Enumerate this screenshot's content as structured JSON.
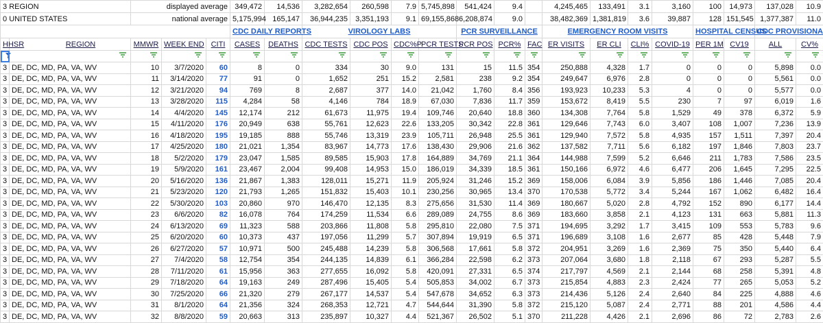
{
  "summary_rows": [
    {
      "id": "3",
      "label": "REGION",
      "note": "displayed average",
      "values": [
        "349,472",
        "14,536",
        "3,282,654",
        "260,598",
        "7.9",
        "5,745,898",
        "541,424",
        "9.4",
        "4,245,465",
        "133,491",
        "3.1",
        "3,160",
        "100",
        "14,973",
        "137,028",
        "10.9"
      ]
    },
    {
      "id": "0",
      "label": "UNITED STATES",
      "note": "national average",
      "values": [
        "5,175,994",
        "165,147",
        "36,944,235",
        "3,351,193",
        "9.1",
        "69,155,868",
        "6,208,874",
        "9.0",
        "38,482,369",
        "1,381,819",
        "3.6",
        "39,887",
        "128",
        "151,545",
        "1,377,387",
        "11.0"
      ]
    }
  ],
  "group_headers": [
    "CDC DAILY REPORTS",
    "VIROLOGY LABS",
    "PCR SURVEILLANCE",
    "EMERGENCY ROOM VISITS",
    "HOSPITAL CENSUS",
    "CDC PROVISIONAL DEATHS"
  ],
  "columns": [
    "HHSR",
    "REGION",
    "MMWR",
    "WEEK END",
    "CITI",
    "CASES",
    "DEATHS",
    "CDC TESTS",
    "CDC POS",
    "CDC%P",
    "PCR TESTS",
    "PCR POS",
    "PCR%",
    "FAC",
    "ER VISITS",
    "ER CLI",
    "CLI%",
    "COVID-19",
    "PER 1M",
    "CV19",
    "ALL",
    "CV%"
  ],
  "rows": [
    [
      "3",
      "DE, DC, MD, PA, VA, WV",
      "10",
      "3/7/2020",
      "60",
      "8",
      "0",
      "334",
      "30",
      "9.0",
      "131",
      "15",
      "11.5",
      "354",
      "250,888",
      "4,328",
      "1.7",
      "0",
      "0",
      "0",
      "5,898",
      "0.0"
    ],
    [
      "3",
      "DE, DC, MD, PA, VA, WV",
      "11",
      "3/14/2020",
      "77",
      "91",
      "0",
      "1,652",
      "251",
      "15.2",
      "2,581",
      "238",
      "9.2",
      "354",
      "249,647",
      "6,976",
      "2.8",
      "0",
      "0",
      "0",
      "5,561",
      "0.0"
    ],
    [
      "3",
      "DE, DC, MD, PA, VA, WV",
      "12",
      "3/21/2020",
      "94",
      "769",
      "8",
      "2,687",
      "377",
      "14.0",
      "21,042",
      "1,760",
      "8.4",
      "356",
      "193,923",
      "10,233",
      "5.3",
      "4",
      "0",
      "0",
      "5,577",
      "0.0"
    ],
    [
      "3",
      "DE, DC, MD, PA, VA, WV",
      "13",
      "3/28/2020",
      "115",
      "4,284",
      "58",
      "4,146",
      "784",
      "18.9",
      "67,030",
      "7,836",
      "11.7",
      "359",
      "153,672",
      "8,419",
      "5.5",
      "230",
      "7",
      "97",
      "6,019",
      "1.6"
    ],
    [
      "3",
      "DE, DC, MD, PA, VA, WV",
      "14",
      "4/4/2020",
      "145",
      "12,174",
      "212",
      "61,673",
      "11,975",
      "19.4",
      "109,746",
      "20,640",
      "18.8",
      "360",
      "134,308",
      "7,764",
      "5.8",
      "1,529",
      "49",
      "378",
      "6,372",
      "5.9"
    ],
    [
      "3",
      "DE, DC, MD, PA, VA, WV",
      "15",
      "4/11/2020",
      "176",
      "20,949",
      "638",
      "55,761",
      "12,623",
      "22.6",
      "133,205",
      "30,342",
      "22.8",
      "361",
      "129,646",
      "7,743",
      "6.0",
      "3,407",
      "108",
      "1,007",
      "7,236",
      "13.9"
    ],
    [
      "3",
      "DE, DC, MD, PA, VA, WV",
      "16",
      "4/18/2020",
      "195",
      "19,185",
      "888",
      "55,746",
      "13,319",
      "23.9",
      "105,711",
      "26,948",
      "25.5",
      "361",
      "129,940",
      "7,572",
      "5.8",
      "4,935",
      "157",
      "1,511",
      "7,397",
      "20.4"
    ],
    [
      "3",
      "DE, DC, MD, PA, VA, WV",
      "17",
      "4/25/2020",
      "180",
      "21,021",
      "1,354",
      "83,967",
      "14,773",
      "17.6",
      "138,430",
      "29,906",
      "21.6",
      "362",
      "137,582",
      "7,711",
      "5.6",
      "6,182",
      "197",
      "1,846",
      "7,803",
      "23.7"
    ],
    [
      "3",
      "DE, DC, MD, PA, VA, WV",
      "18",
      "5/2/2020",
      "179",
      "23,047",
      "1,585",
      "89,585",
      "15,903",
      "17.8",
      "164,889",
      "34,769",
      "21.1",
      "364",
      "144,988",
      "7,599",
      "5.2",
      "6,646",
      "211",
      "1,783",
      "7,586",
      "23.5"
    ],
    [
      "3",
      "DE, DC, MD, PA, VA, WV",
      "19",
      "5/9/2020",
      "161",
      "23,467",
      "2,004",
      "99,408",
      "14,953",
      "15.0",
      "186,019",
      "34,339",
      "18.5",
      "361",
      "150,166",
      "6,972",
      "4.6",
      "6,477",
      "206",
      "1,645",
      "7,295",
      "22.5"
    ],
    [
      "3",
      "DE, DC, MD, PA, VA, WV",
      "20",
      "5/16/2020",
      "136",
      "21,867",
      "1,383",
      "128,011",
      "15,271",
      "11.9",
      "205,924",
      "31,246",
      "15.2",
      "369",
      "158,006",
      "6,084",
      "3.9",
      "5,856",
      "186",
      "1,446",
      "7,085",
      "20.4"
    ],
    [
      "3",
      "DE, DC, MD, PA, VA, WV",
      "21",
      "5/23/2020",
      "120",
      "21,793",
      "1,265",
      "151,832",
      "15,403",
      "10.1",
      "230,256",
      "30,965",
      "13.4",
      "370",
      "170,538",
      "5,772",
      "3.4",
      "5,244",
      "167",
      "1,062",
      "6,482",
      "16.4"
    ],
    [
      "3",
      "DE, DC, MD, PA, VA, WV",
      "22",
      "5/30/2020",
      "103",
      "20,860",
      "970",
      "146,470",
      "12,135",
      "8.3",
      "275,656",
      "31,530",
      "11.4",
      "369",
      "180,667",
      "5,020",
      "2.8",
      "4,792",
      "152",
      "890",
      "6,177",
      "14.4"
    ],
    [
      "3",
      "DE, DC, MD, PA, VA, WV",
      "23",
      "6/6/2020",
      "82",
      "16,078",
      "764",
      "174,259",
      "11,534",
      "6.6",
      "289,089",
      "24,755",
      "8.6",
      "369",
      "183,660",
      "3,858",
      "2.1",
      "4,123",
      "131",
      "663",
      "5,881",
      "11.3"
    ],
    [
      "3",
      "DE, DC, MD, PA, VA, WV",
      "24",
      "6/13/2020",
      "69",
      "11,323",
      "588",
      "203,866",
      "11,808",
      "5.8",
      "295,810",
      "22,080",
      "7.5",
      "371",
      "194,695",
      "3,292",
      "1.7",
      "3,415",
      "109",
      "553",
      "5,783",
      "9.6"
    ],
    [
      "3",
      "DE, DC, MD, PA, VA, WV",
      "25",
      "6/20/2020",
      "60",
      "10,373",
      "437",
      "197,056",
      "11,299",
      "5.7",
      "307,894",
      "19,919",
      "6.5",
      "371",
      "196,689",
      "3,108",
      "1.6",
      "2,677",
      "85",
      "428",
      "5,448",
      "7.9"
    ],
    [
      "3",
      "DE, DC, MD, PA, VA, WV",
      "26",
      "6/27/2020",
      "57",
      "10,971",
      "500",
      "245,488",
      "14,239",
      "5.8",
      "306,568",
      "17,661",
      "5.8",
      "372",
      "204,951",
      "3,269",
      "1.6",
      "2,369",
      "75",
      "350",
      "5,440",
      "6.4"
    ],
    [
      "3",
      "DE, DC, MD, PA, VA, WV",
      "27",
      "7/4/2020",
      "58",
      "12,754",
      "354",
      "244,135",
      "14,839",
      "6.1",
      "366,284",
      "22,598",
      "6.2",
      "373",
      "207,064",
      "3,680",
      "1.8",
      "2,118",
      "67",
      "293",
      "5,287",
      "5.5"
    ],
    [
      "3",
      "DE, DC, MD, PA, VA, WV",
      "28",
      "7/11/2020",
      "61",
      "15,956",
      "363",
      "277,655",
      "16,092",
      "5.8",
      "420,091",
      "27,331",
      "6.5",
      "374",
      "217,797",
      "4,569",
      "2.1",
      "2,144",
      "68",
      "258",
      "5,391",
      "4.8"
    ],
    [
      "3",
      "DE, DC, MD, PA, VA, WV",
      "29",
      "7/18/2020",
      "64",
      "19,163",
      "249",
      "287,496",
      "15,405",
      "5.4",
      "505,853",
      "34,002",
      "6.7",
      "373",
      "215,854",
      "4,883",
      "2.3",
      "2,424",
      "77",
      "265",
      "5,053",
      "5.2"
    ],
    [
      "3",
      "DE, DC, MD, PA, VA, WV",
      "30",
      "7/25/2020",
      "66",
      "21,320",
      "279",
      "267,177",
      "14,537",
      "5.4",
      "547,678",
      "34,652",
      "6.3",
      "373",
      "214,436",
      "5,126",
      "2.4",
      "2,640",
      "84",
      "225",
      "4,888",
      "4.6"
    ],
    [
      "3",
      "DE, DC, MD, PA, VA, WV",
      "31",
      "8/1/2020",
      "64",
      "21,356",
      "324",
      "268,353",
      "12,721",
      "4.7",
      "544,644",
      "31,390",
      "5.8",
      "372",
      "215,120",
      "5,087",
      "2.4",
      "2,771",
      "88",
      "201",
      "4,586",
      "4.4"
    ],
    [
      "3",
      "DE, DC, MD, PA, VA, WV",
      "32",
      "8/8/2020",
      "59",
      "20,663",
      "313",
      "235,897",
      "10,327",
      "4.4",
      "521,367",
      "26,502",
      "5.1",
      "370",
      "211,228",
      "4,426",
      "2.1",
      "2,696",
      "86",
      "72",
      "2,783",
      "2.6"
    ]
  ]
}
